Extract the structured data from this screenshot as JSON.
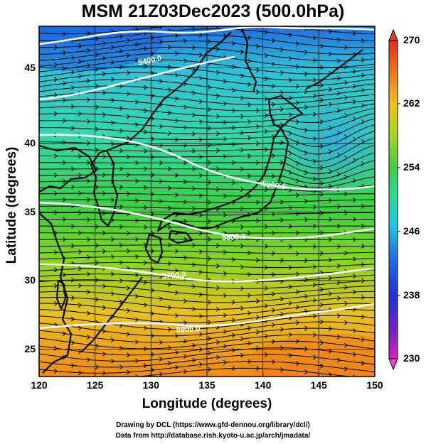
{
  "title": "MSM 21Z03Dec2023 (500.0hPa)",
  "x_axis": {
    "label": "Longitude (degrees)",
    "ticks": [
      "120",
      "125",
      "130",
      "135",
      "140",
      "145",
      "150"
    ]
  },
  "y_axis": {
    "label": "Latitude  (degrees)",
    "ticks": [
      "25",
      "30",
      "35",
      "40",
      "45"
    ]
  },
  "colorbar": {
    "ticks": [
      "270",
      "262",
      "254",
      "246",
      "238",
      "230"
    ],
    "min": 230,
    "max": 270
  },
  "contour_labels": [
    "5400.0",
    "5600.0",
    "5800.0",
    "5700.0",
    "5900.0"
  ],
  "credits": [
    "Drawing by DCL (https://www.gfd-dennou.org/library/dcl/)",
    "Data from http://database.rish.kyoto-u.ac.jp/arch/jmadata/"
  ],
  "extent": {
    "lon": [
      120,
      150
    ],
    "lat": [
      22.5,
      48
    ]
  }
}
